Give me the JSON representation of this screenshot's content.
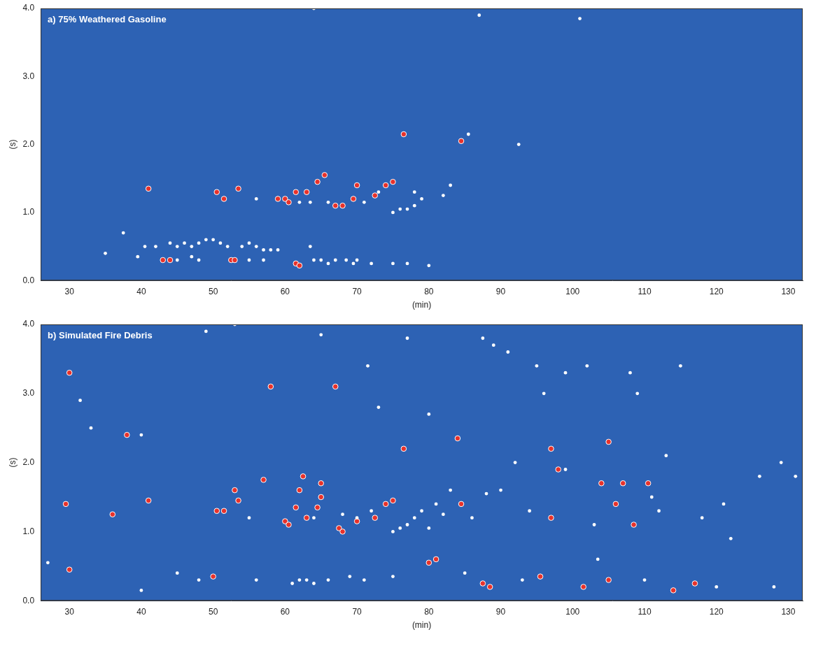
{
  "chart_data": [
    {
      "type": "scatter",
      "title": "a) 75% Weathered Gasoline",
      "x_label": "(min)",
      "y_label": "(s)",
      "xlim": [
        26,
        132
      ],
      "xticks": [
        30,
        40,
        50,
        60,
        70,
        80,
        90,
        100,
        110,
        120,
        130
      ],
      "ylim": [
        0,
        4
      ],
      "yticks": [
        {
          "value": 0,
          "label": "0.0"
        },
        {
          "value": 1,
          "label": "1.0"
        },
        {
          "value": 2,
          "label": "2.0"
        },
        {
          "value": 3,
          "label": "3.0"
        },
        {
          "value": 4,
          "label": "4.0"
        }
      ],
      "grid": false,
      "series": [
        {
          "color": "#ffffff",
          "marker": "circle",
          "x": [
            37.5,
            39.5,
            40.5,
            42,
            44,
            45,
            46,
            47,
            48,
            49,
            50,
            51,
            52,
            54,
            55,
            56,
            57,
            58,
            59,
            63.5,
            64,
            65,
            66,
            67,
            68.5,
            69.5,
            70,
            72,
            75,
            77,
            80,
            56,
            62,
            63.5,
            66,
            71,
            73,
            75,
            76,
            77,
            78,
            78,
            79,
            82,
            83,
            85.5,
            92.5,
            87,
            101,
            64,
            35,
            47,
            45,
            48,
            55,
            57
          ],
          "y": [
            0.7,
            0.35,
            0.5,
            0.5,
            0.55,
            0.5,
            0.55,
            0.5,
            0.55,
            0.6,
            0.6,
            0.55,
            0.5,
            0.5,
            0.55,
            0.5,
            0.45,
            0.45,
            0.45,
            0.5,
            0.3,
            0.3,
            0.25,
            0.3,
            0.3,
            0.25,
            0.3,
            0.25,
            0.25,
            0.25,
            0.22,
            1.2,
            1.15,
            1.15,
            1.15,
            1.15,
            1.3,
            1.0,
            1.05,
            1.05,
            1.3,
            1.1,
            1.2,
            1.25,
            1.4,
            2.15,
            2.0,
            3.9,
            3.85,
            4.0,
            0.4,
            0.35,
            0.3,
            0.3,
            0.3,
            0.3
          ]
        },
        {
          "color": "#e8322b",
          "marker": "circle",
          "x": [
            41,
            50.5,
            51.5,
            53.5,
            59,
            60,
            60.5,
            61.5,
            63,
            64.5,
            65.5,
            67,
            68,
            69.5,
            70,
            72.5,
            74,
            75,
            76.5,
            84.5,
            43,
            44,
            52.5,
            53,
            61.5,
            62
          ],
          "y": [
            1.35,
            1.3,
            1.2,
            1.35,
            1.2,
            1.2,
            1.15,
            1.3,
            1.3,
            1.45,
            1.55,
            1.1,
            1.1,
            1.2,
            1.4,
            1.25,
            1.4,
            1.45,
            2.15,
            2.05,
            0.3,
            0.3,
            0.3,
            0.3,
            0.25,
            0.22
          ]
        }
      ]
    },
    {
      "type": "scatter",
      "title": "b) Simulated Fire Debris",
      "x_label": "(min)",
      "y_label": "(s)",
      "xlim": [
        26,
        132
      ],
      "xticks": [
        30,
        40,
        50,
        60,
        70,
        80,
        90,
        100,
        110,
        120,
        130
      ],
      "ylim": [
        0,
        4
      ],
      "yticks": [
        {
          "value": 0,
          "label": "0.0"
        },
        {
          "value": 1,
          "label": "1.0"
        },
        {
          "value": 2,
          "label": "2.0"
        },
        {
          "value": 3,
          "label": "3.0"
        },
        {
          "value": 4,
          "label": "4.0"
        }
      ],
      "grid": false,
      "series": [
        {
          "color": "#ffffff",
          "marker": "circle",
          "x": [
            27,
            31.5,
            33,
            40,
            40,
            45,
            48,
            49,
            53,
            55,
            56,
            61,
            62,
            63,
            64,
            65,
            66,
            69,
            71,
            71.5,
            73,
            75,
            77,
            78,
            79,
            80,
            80,
            81,
            82,
            83,
            85,
            86,
            87.5,
            88,
            89,
            90,
            91,
            92,
            93,
            94,
            95,
            96,
            99,
            99,
            102,
            103,
            103.5,
            108,
            109,
            111,
            112,
            113,
            115,
            118,
            121,
            122,
            126,
            129,
            131,
            120,
            128,
            110,
            75,
            76,
            77,
            64,
            68,
            70,
            72
          ],
          "y": [
            0.55,
            2.9,
            2.5,
            0.15,
            2.4,
            0.4,
            0.3,
            3.9,
            4.0,
            1.2,
            0.3,
            0.25,
            0.3,
            0.3,
            0.25,
            3.85,
            0.3,
            0.35,
            0.3,
            3.4,
            2.8,
            0.35,
            3.8,
            1.2,
            1.3,
            2.7,
            1.05,
            1.4,
            1.25,
            1.6,
            0.4,
            1.2,
            3.8,
            1.55,
            3.7,
            1.6,
            3.6,
            2.0,
            0.3,
            1.3,
            3.4,
            3.0,
            1.9,
            3.3,
            3.4,
            1.1,
            0.6,
            3.3,
            3.0,
            1.5,
            1.3,
            2.1,
            3.4,
            1.2,
            1.4,
            0.9,
            1.8,
            2.0,
            1.8,
            0.2,
            0.2,
            0.3,
            1.0,
            1.05,
            1.1,
            1.2,
            1.25,
            1.2,
            1.3
          ]
        },
        {
          "color": "#e8322b",
          "marker": "circle",
          "x": [
            30,
            29.5,
            30,
            36,
            38,
            41,
            50,
            50.5,
            51.5,
            53,
            53.5,
            57,
            58,
            60,
            60.5,
            61.5,
            62,
            62.5,
            63,
            64.5,
            65,
            65,
            67,
            67.5,
            68,
            70,
            72.5,
            74,
            75,
            76.5,
            80,
            81,
            84,
            84.5,
            87.5,
            88.5,
            97,
            97,
            98,
            101.5,
            104,
            105,
            106,
            107,
            108.5,
            110.5,
            114,
            117,
            105,
            95.5
          ],
          "y": [
            3.3,
            1.4,
            0.45,
            1.25,
            2.4,
            1.45,
            0.35,
            1.3,
            1.3,
            1.6,
            1.45,
            1.75,
            3.1,
            1.15,
            1.1,
            1.35,
            1.6,
            1.8,
            1.2,
            1.35,
            1.7,
            1.5,
            3.1,
            1.05,
            1.0,
            1.15,
            1.2,
            1.4,
            1.45,
            2.2,
            0.55,
            0.6,
            2.35,
            1.4,
            0.25,
            0.2,
            2.2,
            1.2,
            1.9,
            0.2,
            1.7,
            2.3,
            1.4,
            1.7,
            1.1,
            1.7,
            0.15,
            0.25,
            0.3,
            0.35
          ]
        }
      ]
    }
  ]
}
